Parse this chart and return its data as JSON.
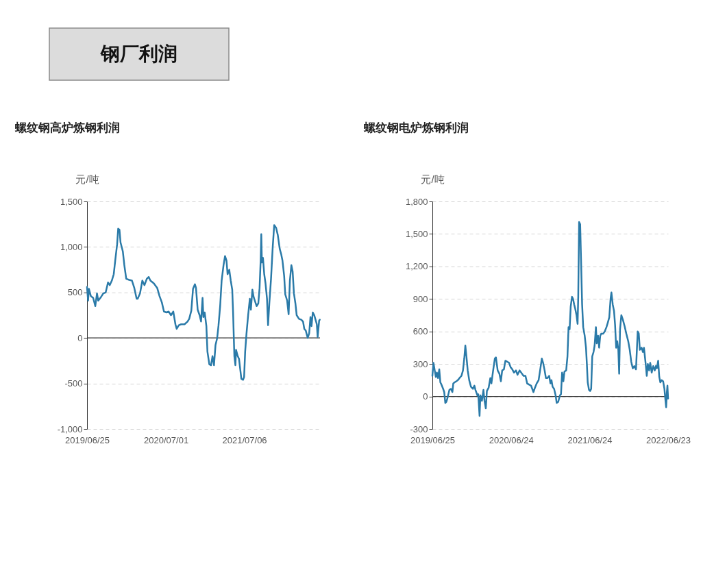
{
  "chart_data": [
    {
      "type": "other",
      "title": "钢厂利润"
    },
    {
      "type": "line",
      "title": "螺纹钢高炉炼钢利润",
      "ylabel": "元/吨",
      "line_style": "solid",
      "grid": "y",
      "xlim": [
        "2019-06-25",
        "2022-06-28"
      ],
      "xticks": [
        {
          "value": "2019-06-25",
          "label": "2019/06/25"
        },
        {
          "value": "2020-07-01",
          "label": "2020/07/01"
        },
        {
          "value": "2021-07-06",
          "label": "2021/07/06"
        }
      ],
      "ylim": [
        -1000,
        1500
      ],
      "yticks": [
        {
          "value": -1000,
          "label": "-1,000"
        },
        -500,
        0,
        500,
        {
          "value": 1000,
          "label": "1,000"
        },
        {
          "value": 1500,
          "label": "1,500"
        }
      ],
      "ref_lines": [
        {
          "axis": "y",
          "value": 0,
          "color": "#333333"
        }
      ],
      "x": [
        "2019-06-25",
        "2019-06-30",
        "2019-07-04",
        "2019-07-13",
        "2019-07-24",
        "2019-08-03",
        "2019-08-11",
        "2019-08-17",
        "2019-08-30",
        "2019-09-10",
        "2019-09-21",
        "2019-10-02",
        "2019-10-10",
        "2019-10-20",
        "2019-10-29",
        "2019-11-05",
        "2019-11-14",
        "2019-11-19",
        "2019-11-25",
        "2019-11-30",
        "2019-12-11",
        "2019-12-18",
        "2019-12-27",
        "2020-01-07",
        "2020-01-23",
        "2020-02-03",
        "2020-02-14",
        "2020-02-19",
        "2020-03-01",
        "2020-03-12",
        "2020-03-22",
        "2020-04-02",
        "2020-04-11",
        "2020-04-19",
        "2020-05-05",
        "2020-05-21",
        "2020-06-01",
        "2020-06-12",
        "2020-06-22",
        "2020-07-03",
        "2020-07-14",
        "2020-07-25",
        "2020-08-05",
        "2020-08-15",
        "2020-08-21",
        "2020-08-31",
        "2020-09-11",
        "2020-09-27",
        "2020-10-11",
        "2020-10-19",
        "2020-10-29",
        "2020-11-06",
        "2020-11-15",
        "2020-11-20",
        "2020-11-28",
        "2020-12-07",
        "2020-12-14",
        "2020-12-21",
        "2020-12-25",
        "2020-12-31",
        "2021-01-08",
        "2021-01-13",
        "2021-01-22",
        "2021-01-30",
        "2021-02-06",
        "2021-02-13",
        "2021-02-20",
        "2021-02-28",
        "2021-03-06",
        "2021-03-14",
        "2021-03-21",
        "2021-03-30",
        "2021-04-06",
        "2021-04-13",
        "2021-04-18",
        "2021-04-26",
        "2021-05-03",
        "2021-05-10",
        "2021-05-14",
        "2021-05-20",
        "2021-05-25",
        "2021-05-28",
        "2021-06-05",
        "2021-06-11",
        "2021-06-17",
        "2021-06-22",
        "2021-06-30",
        "2021-07-05",
        "2021-07-10",
        "2021-07-16",
        "2021-07-24",
        "2021-08-01",
        "2021-08-06",
        "2021-08-13",
        "2021-08-19",
        "2021-08-26",
        "2021-09-02",
        "2021-09-10",
        "2021-09-16",
        "2021-09-21",
        "2021-09-24",
        "2021-09-27",
        "2021-10-02",
        "2021-10-08",
        "2021-10-14",
        "2021-10-21",
        "2021-10-26",
        "2021-11-01",
        "2021-11-09",
        "2021-11-17",
        "2021-11-24",
        "2021-12-03",
        "2021-12-11",
        "2021-12-20",
        "2021-12-27",
        "2022-01-02",
        "2022-01-10",
        "2022-01-15",
        "2022-01-24",
        "2022-01-31",
        "2022-02-06",
        "2022-02-13",
        "2022-02-19",
        "2022-02-25",
        "2022-03-04",
        "2022-03-10",
        "2022-03-21",
        "2022-04-01",
        "2022-04-09",
        "2022-04-15",
        "2022-04-22",
        "2022-05-01",
        "2022-05-08",
        "2022-05-14",
        "2022-05-19",
        "2022-05-25",
        "2022-06-01",
        "2022-06-07",
        "2022-06-13",
        "2022-06-17",
        "2022-06-24",
        "2022-06-27"
      ],
      "series": [
        {
          "color": "#2a7aa8",
          "values": [
            560,
            410,
            540,
            460,
            440,
            350,
            490,
            410,
            450,
            490,
            500,
            610,
            580,
            630,
            700,
            850,
            1030,
            1200,
            1190,
            1050,
            950,
            800,
            650,
            640,
            630,
            550,
            430,
            430,
            490,
            630,
            580,
            650,
            670,
            630,
            600,
            550,
            460,
            390,
            290,
            280,
            290,
            250,
            290,
            150,
            100,
            140,
            150,
            150,
            180,
            210,
            300,
            540,
            590,
            550,
            310,
            250,
            180,
            440,
            230,
            280,
            130,
            -150,
            -290,
            -300,
            -200,
            -300,
            -80,
            0,
            130,
            350,
            630,
            800,
            900,
            850,
            700,
            750,
            630,
            530,
            280,
            -200,
            -300,
            -130,
            -200,
            -230,
            -350,
            -450,
            -460,
            -430,
            -150,
            40,
            250,
            430,
            310,
            530,
            450,
            400,
            350,
            380,
            550,
            850,
            1140,
            830,
            880,
            700,
            600,
            430,
            140,
            380,
            650,
            1000,
            1240,
            1210,
            1130,
            980,
            920,
            850,
            680,
            480,
            410,
            260,
            630,
            800,
            730,
            490,
            380,
            250,
            210,
            200,
            180,
            100,
            80,
            0,
            50,
            230,
            130,
            280,
            250,
            200,
            150,
            10,
            190,
            200
          ]
        }
      ]
    },
    {
      "type": "line",
      "title": "螺纹钢电炉炼钢利润",
      "ylabel": "元/吨",
      "line_style": "solid",
      "grid": "y",
      "xlim": [
        "2019-06-25",
        "2022-06-23"
      ],
      "xticks": [
        {
          "value": "2019-06-25",
          "label": "2019/06/25"
        },
        {
          "value": "2020-06-24",
          "label": "2020/06/24"
        },
        {
          "value": "2021-06-24",
          "label": "2021/06/24"
        },
        {
          "value": "2022-06-23",
          "label": "2022/06/23"
        }
      ],
      "ylim": [
        -300,
        1800
      ],
      "yticks": [
        -300,
        0,
        300,
        600,
        900,
        {
          "value": 1200,
          "label": "1,200"
        },
        {
          "value": 1500,
          "label": "1,500"
        },
        {
          "value": 1800,
          "label": "1,800"
        }
      ],
      "ref_lines": [
        {
          "axis": "y",
          "value": 0,
          "color": "#333333"
        }
      ],
      "x": [
        "2019-06-25",
        "2019-06-30",
        "2019-07-06",
        "2019-07-11",
        "2019-07-16",
        "2019-07-21",
        "2019-07-27",
        "2019-08-01",
        "2019-08-06",
        "2019-08-14",
        "2019-08-19",
        "2019-08-24",
        "2019-08-29",
        "2019-09-05",
        "2019-09-12",
        "2019-09-19",
        "2019-09-26",
        "2019-09-30",
        "2019-10-06",
        "2019-10-14",
        "2019-10-21",
        "2019-10-29",
        "2019-11-07",
        "2019-11-14",
        "2019-11-20",
        "2019-11-25",
        "2019-11-30",
        "2019-12-06",
        "2019-12-13",
        "2019-12-21",
        "2019-12-30",
        "2020-01-06",
        "2020-01-11",
        "2020-01-20",
        "2020-01-24",
        "2020-01-30",
        "2020-02-03",
        "2020-02-10",
        "2020-02-17",
        "2020-02-22",
        "2020-02-28",
        "2020-03-04",
        "2020-03-12",
        "2020-03-20",
        "2020-03-25",
        "2020-04-02",
        "2020-04-10",
        "2020-04-15",
        "2020-04-23",
        "2020-05-01",
        "2020-05-08",
        "2020-05-14",
        "2020-05-22",
        "2020-05-29",
        "2020-06-07",
        "2020-06-15",
        "2020-06-22",
        "2020-06-30",
        "2020-07-08",
        "2020-07-17",
        "2020-07-24",
        "2020-08-03",
        "2020-08-14",
        "2020-08-21",
        "2020-08-30",
        "2020-09-07",
        "2020-09-15",
        "2020-09-25",
        "2020-10-06",
        "2020-10-13",
        "2020-10-21",
        "2020-10-30",
        "2020-11-06",
        "2020-11-14",
        "2020-11-20",
        "2020-11-27",
        "2020-12-03",
        "2020-12-10",
        "2020-12-18",
        "2020-12-24",
        "2020-12-29",
        "2021-01-03",
        "2021-01-10",
        "2021-01-17",
        "2021-01-22",
        "2021-01-29",
        "2021-02-06",
        "2021-02-11",
        "2021-02-16",
        "2021-02-22",
        "2021-02-27",
        "2021-03-07",
        "2021-03-13",
        "2021-03-18",
        "2021-03-23",
        "2021-03-28",
        "2021-04-03",
        "2021-04-08",
        "2021-04-13",
        "2021-04-18",
        "2021-04-24",
        "2021-04-29",
        "2021-05-02",
        "2021-05-06",
        "2021-05-11",
        "2021-05-15",
        "2021-05-20",
        "2021-05-25",
        "2021-06-01",
        "2021-06-07",
        "2021-06-11",
        "2021-06-15",
        "2021-06-21",
        "2021-06-26",
        "2021-07-01",
        "2021-07-06",
        "2021-07-12",
        "2021-07-17",
        "2021-07-23",
        "2021-07-27",
        "2021-08-02",
        "2021-08-07",
        "2021-08-12",
        "2021-08-17",
        "2021-08-26",
        "2021-09-02",
        "2021-09-10",
        "2021-09-16",
        "2021-09-23",
        "2021-09-29",
        "2021-10-03",
        "2021-10-09",
        "2021-10-15",
        "2021-10-20",
        "2021-10-25",
        "2021-10-30",
        "2021-11-04",
        "2021-11-08",
        "2021-11-12",
        "2021-11-18",
        "2021-11-25",
        "2021-12-03",
        "2021-12-11",
        "2021-12-20",
        "2021-12-27",
        "2022-01-03",
        "2022-01-10",
        "2022-01-17",
        "2022-01-25",
        "2022-02-02",
        "2022-02-07",
        "2022-02-12",
        "2022-02-20",
        "2022-02-26",
        "2022-03-03",
        "2022-03-11",
        "2022-03-16",
        "2022-03-21",
        "2022-03-27",
        "2022-04-01",
        "2022-04-08",
        "2022-04-15",
        "2022-04-22",
        "2022-04-27",
        "2022-05-02",
        "2022-05-08",
        "2022-05-13",
        "2022-05-18",
        "2022-05-24",
        "2022-05-31",
        "2022-06-06",
        "2022-06-10",
        "2022-06-14",
        "2022-06-17",
        "2022-06-20",
        "2022-06-23"
      ],
      "series": [
        {
          "color": "#2a7aa8",
          "values": [
            190,
            310,
            240,
            180,
            220,
            170,
            250,
            130,
            110,
            70,
            40,
            -60,
            -50,
            0,
            60,
            70,
            40,
            120,
            130,
            140,
            150,
            170,
            190,
            240,
            350,
            470,
            370,
            240,
            150,
            90,
            70,
            100,
            60,
            10,
            20,
            -180,
            10,
            -40,
            60,
            -40,
            -110,
            50,
            80,
            170,
            120,
            240,
            350,
            360,
            240,
            210,
            140,
            240,
            250,
            330,
            320,
            310,
            270,
            250,
            220,
            240,
            200,
            240,
            210,
            190,
            190,
            120,
            110,
            100,
            40,
            80,
            120,
            150,
            240,
            350,
            310,
            240,
            170,
            170,
            190,
            120,
            150,
            90,
            70,
            10,
            -60,
            -50,
            10,
            20,
            220,
            140,
            230,
            240,
            370,
            640,
            620,
            830,
            920,
            900,
            850,
            810,
            750,
            670,
            920,
            1610,
            1590,
            1260,
            850,
            640,
            560,
            450,
            300,
            130,
            60,
            50,
            70,
            370,
            410,
            470,
            640,
            490,
            560,
            450,
            560,
            580,
            580,
            600,
            640,
            680,
            730,
            900,
            960,
            850,
            790,
            660,
            450,
            510,
            430,
            210,
            620,
            750,
            710,
            650,
            580,
            510,
            430,
            320,
            260,
            280,
            250,
            600,
            580,
            430,
            450,
            410,
            450,
            300,
            190,
            300,
            240,
            310,
            220,
            280,
            240,
            280,
            260,
            330,
            180,
            130,
            150,
            140,
            70,
            -20,
            -100,
            30,
            100,
            -20
          ]
        }
      ]
    }
  ]
}
